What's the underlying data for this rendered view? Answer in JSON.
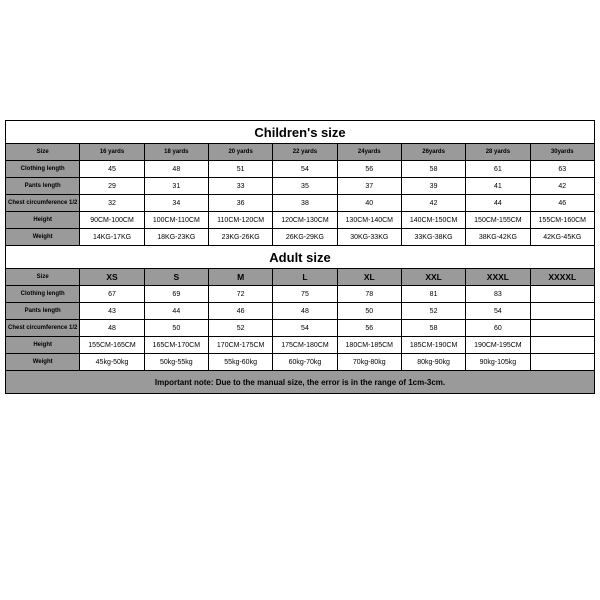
{
  "children": {
    "title": "Children's size",
    "headers": [
      "Size",
      "16 yards",
      "18 yards",
      "20 yards",
      "22 yards",
      "24yards",
      "26yards",
      "28 yards",
      "30yards"
    ],
    "row_labels": [
      "Clothing length",
      "Pants length",
      "Chest circumference 1/2",
      "Height",
      "Weight"
    ],
    "rows": [
      [
        "45",
        "48",
        "51",
        "54",
        "56",
        "58",
        "61",
        "63"
      ],
      [
        "29",
        "31",
        "33",
        "35",
        "37",
        "39",
        "41",
        "42"
      ],
      [
        "32",
        "34",
        "36",
        "38",
        "40",
        "42",
        "44",
        "46"
      ],
      [
        "90CM-100CM",
        "100CM-110CM",
        "110CM-120CM",
        "120CM-130CM",
        "130CM-140CM",
        "140CM-150CM",
        "150CM-155CM",
        "155CM-160CM"
      ],
      [
        "14KG-17KG",
        "18KG-23KG",
        "23KG-26KG",
        "26KG-29KG",
        "30KG-33KG",
        "33KG-38KG",
        "38KG-42KG",
        "42KG-45KG"
      ]
    ]
  },
  "adult": {
    "title": "Adult size",
    "headers": [
      "Size",
      "XS",
      "S",
      "M",
      "L",
      "XL",
      "XXL",
      "XXXL",
      "XXXXL"
    ],
    "row_labels": [
      "Clothing length",
      "Pants length",
      "Chest circumference 1/2",
      "Height",
      "Weight"
    ],
    "rows": [
      [
        "67",
        "69",
        "72",
        "75",
        "78",
        "81",
        "83",
        ""
      ],
      [
        "43",
        "44",
        "46",
        "48",
        "50",
        "52",
        "54",
        ""
      ],
      [
        "48",
        "50",
        "52",
        "54",
        "56",
        "58",
        "60",
        ""
      ],
      [
        "155CM-165CM",
        "165CM-170CM",
        "170CM-175CM",
        "175CM-180CM",
        "180CM-185CM",
        "185CM-190CM",
        "190CM-195CM",
        ""
      ],
      [
        "45kg-50kg",
        "50kg-55kg",
        "55kg-60kg",
        "60kg-70kg",
        "70kg-80kg",
        "80kg-90kg",
        "90kg-105kg",
        ""
      ]
    ]
  },
  "note": "Important note: Due to the manual size, the error is in the range of 1cm-3cm.",
  "colors": {
    "header_bg": "#9a9a9a",
    "border": "#000000",
    "title_bg": "#ffffff",
    "data_bg": "#ffffff"
  }
}
